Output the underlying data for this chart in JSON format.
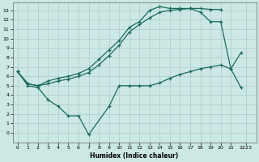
{
  "xlabel": "Humidex (Indice chaleur)",
  "bg_color": "#cce8e4",
  "grid_color": "#aacccc",
  "line_color": "#1a6b5a",
  "xlim": [
    -0.5,
    23.5
  ],
  "ylim": [
    -1.0,
    13.8
  ],
  "xtick_labels": [
    "0",
    "1",
    "2",
    "3",
    "4",
    "5",
    "6",
    "7",
    "8",
    "9",
    "10",
    "11",
    "12",
    "13",
    "14",
    "15",
    "16",
    "17",
    "18",
    "19",
    "20",
    "21",
    "2223"
  ],
  "xtick_positions": [
    0,
    1,
    2,
    3,
    4,
    5,
    6,
    7,
    8,
    9,
    10,
    11,
    12,
    13,
    14,
    15,
    16,
    17,
    18,
    19,
    20,
    21,
    22.5
  ],
  "yticks": [
    0,
    1,
    2,
    3,
    4,
    5,
    6,
    7,
    8,
    9,
    10,
    11,
    12,
    13
  ],
  "line_top_x": [
    0,
    1,
    2,
    3,
    4,
    5,
    6,
    7,
    8,
    9,
    10,
    11,
    12,
    13,
    14,
    15,
    16,
    17,
    18,
    19,
    20
  ],
  "line_top_y": [
    6.5,
    5.2,
    5.0,
    5.5,
    5.8,
    6.0,
    6.3,
    6.8,
    7.8,
    8.8,
    9.8,
    11.2,
    11.8,
    13.0,
    13.4,
    13.2,
    13.2,
    13.2,
    13.2,
    13.1,
    13.1
  ],
  "line_mid_x": [
    0,
    1,
    2,
    3,
    4,
    5,
    6,
    7,
    8,
    9,
    10,
    11,
    12,
    13,
    14,
    15,
    16,
    17,
    18,
    19,
    20,
    21,
    22
  ],
  "line_mid_y": [
    6.5,
    5.2,
    5.0,
    5.2,
    5.5,
    5.7,
    6.0,
    6.4,
    7.2,
    8.2,
    9.3,
    10.7,
    11.5,
    12.2,
    12.8,
    13.0,
    13.1,
    13.2,
    12.8,
    11.8,
    11.8,
    6.8,
    8.5
  ],
  "line_low_x": [
    0,
    1,
    2,
    3,
    4,
    5,
    6,
    7,
    9,
    10,
    11,
    12,
    13,
    14,
    15,
    16,
    17,
    18,
    19,
    20,
    21,
    22
  ],
  "line_low_y": [
    6.5,
    5.0,
    4.8,
    3.5,
    2.8,
    1.8,
    1.8,
    -0.2,
    2.8,
    5.0,
    5.0,
    5.0,
    5.0,
    5.3,
    5.8,
    6.2,
    6.5,
    6.8,
    7.0,
    7.2,
    6.8,
    4.8
  ]
}
